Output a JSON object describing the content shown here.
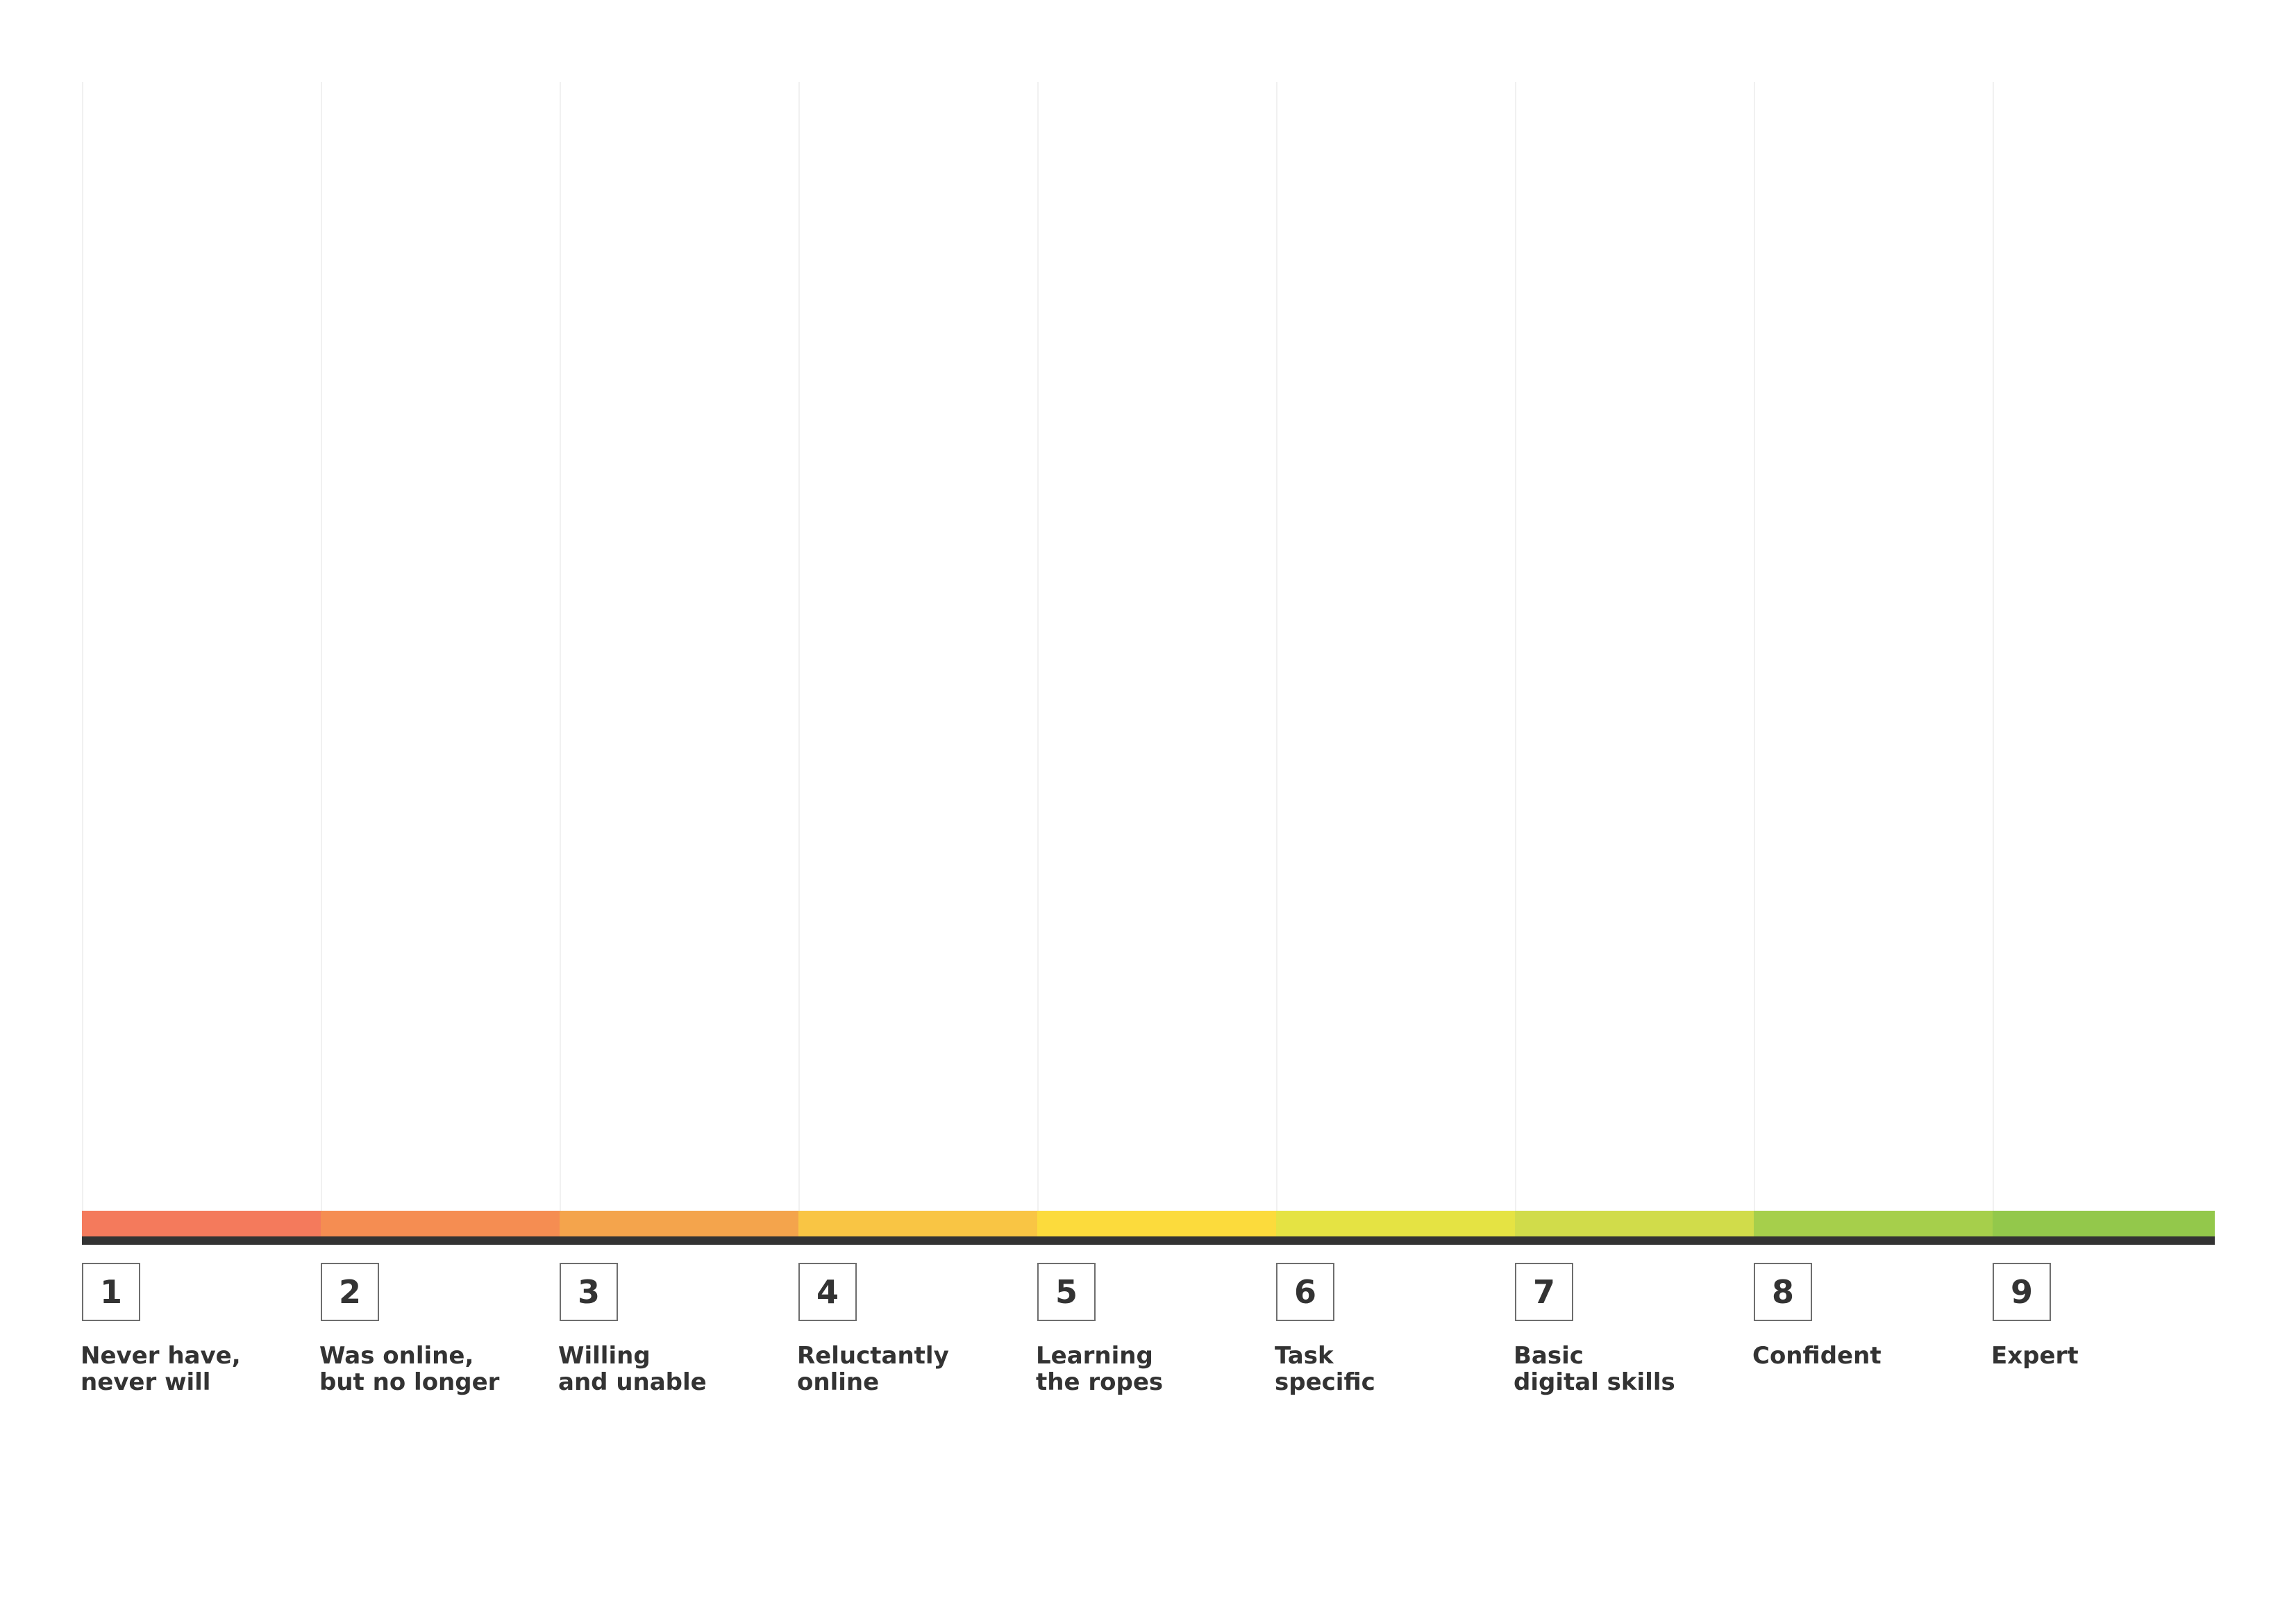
{
  "scale": {
    "steps": [
      {
        "number": "1",
        "label_line1": "Never have,",
        "label_line2": "never will",
        "color": "#f47a5c"
      },
      {
        "number": "2",
        "label_line1": "Was online,",
        "label_line2": "but no longer",
        "color": "#f58d52"
      },
      {
        "number": "3",
        "label_line1": "Willing",
        "label_line2": "and unable",
        "color": "#f4a44c"
      },
      {
        "number": "4",
        "label_line1": "Reluctantly",
        "label_line2": "online",
        "color": "#f9c544"
      },
      {
        "number": "5",
        "label_line1": "Learning",
        "label_line2": "the ropes",
        "color": "#fcdb3c"
      },
      {
        "number": "6",
        "label_line1": "Task",
        "label_line2": "specific",
        "color": "#e5e343"
      },
      {
        "number": "7",
        "label_line1": "Basic",
        "label_line2": "digital skills",
        "color": "#d1dc4a"
      },
      {
        "number": "8",
        "label_line1": "Confident",
        "label_line2": "",
        "color": "#a6cf4b"
      },
      {
        "number": "9",
        "label_line1": "Expert",
        "label_line2": "",
        "color": "#93c84b"
      }
    ],
    "baseline_color": "#333333",
    "guide_color": "#f1f1f1"
  }
}
